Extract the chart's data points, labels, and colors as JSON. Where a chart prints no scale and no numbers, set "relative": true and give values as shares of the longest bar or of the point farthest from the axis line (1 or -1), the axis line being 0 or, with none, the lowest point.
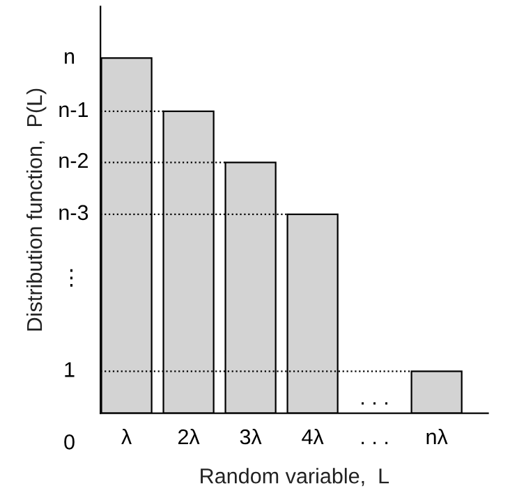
{
  "chart_data": {
    "type": "bar",
    "relative": true,
    "xlabel": "Random variable,  L",
    "ylabel": "Distribution function,  P(L)",
    "categories": [
      "λ",
      "2λ",
      "3λ",
      "4λ",
      ". . .",
      "nλ"
    ],
    "values": [
      1,
      0.85,
      0.706,
      0.56,
      null,
      0.118
    ],
    "color": "#d3d3d3",
    "ref_lines": [
      {
        "axis": "y",
        "value": 0.85,
        "line_style": "dotted"
      },
      {
        "axis": "y",
        "value": 0.706,
        "line_style": "dotted"
      },
      {
        "axis": "y",
        "value": 0.56,
        "line_style": "dotted"
      },
      {
        "axis": "y",
        "value": 0.118,
        "line_style": "dotted"
      }
    ],
    "annotations": [
      "n",
      "n-1",
      "n-2",
      "n-3",
      "⋮",
      "1",
      "0",
      ". . ."
    ],
    "grid": false,
    "legend": false
  }
}
